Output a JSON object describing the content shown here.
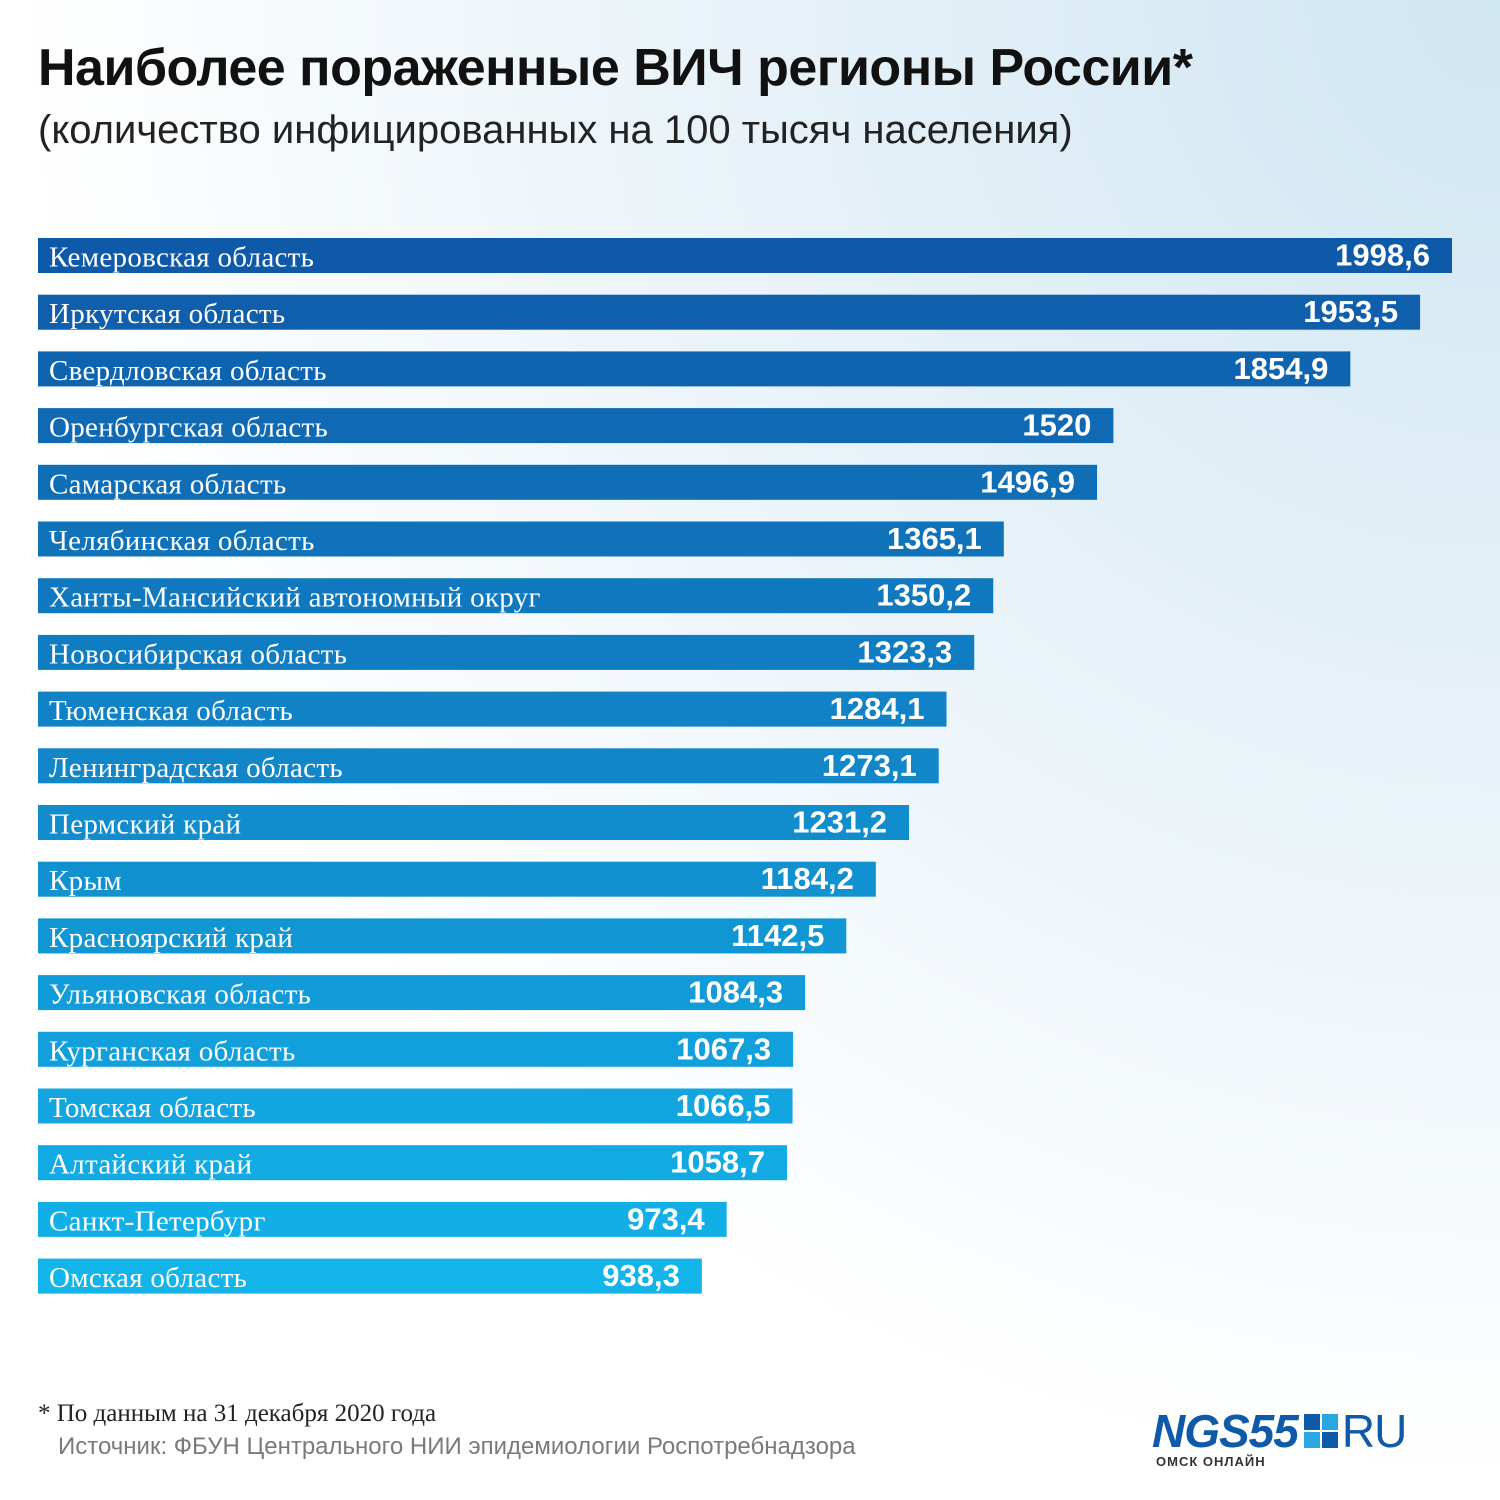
{
  "title": "Наиболее пораженные ВИЧ регионы России*",
  "subtitle": "(количество инфицированных на 100 тысяч населения)",
  "footnote": "* По данным на 31 декабря 2020 года",
  "source": "Источник: ФБУН Центрального НИИ эпидемиологии Роспотребнадзора",
  "logo": {
    "ngs": "NGS55",
    "ru": "RU",
    "tagline": "ОМСК ОНЛАЙН",
    "color_blue": "#0f5aa8",
    "square_colors": [
      "#0f5aa8",
      "#2aa7e0",
      "#2aa7e0",
      "#0f5aa8"
    ]
  },
  "colors": {
    "bar_top": "#0f5aa8",
    "bar_bottom": "#12b4ea",
    "text_on_bar": "#ffffff"
  },
  "chart_data": {
    "type": "bar",
    "orientation": "horizontal",
    "xlim": [
      0,
      1998.6
    ],
    "categories": [
      "Кемеровская область",
      "Иркутская область",
      "Свердловская область",
      "Оренбургская область",
      "Самарская область",
      "Челябинская область",
      "Ханты-Мансийский автономный округ",
      "Новосибирская область",
      "Тюменская область",
      "Ленинградская область",
      "Пермский край",
      "Крым",
      "Красноярский край",
      "Ульяновская область",
      "Курганская область",
      "Томская область",
      "Алтайский край",
      "Санкт-Петербург",
      "Омская область"
    ],
    "values": [
      1998.6,
      1953.5,
      1854.9,
      1520,
      1496.9,
      1365.1,
      1350.2,
      1323.3,
      1284.1,
      1273.1,
      1231.2,
      1184.2,
      1142.5,
      1084.3,
      1067.3,
      1066.5,
      1058.7,
      973.4,
      938.3
    ],
    "value_labels": [
      "1998,6",
      "1953,5",
      "1854,9",
      "1520",
      "1496,9",
      "1365,1",
      "1350,2",
      "1323,3",
      "1284,1",
      "1273,1",
      "1231,2",
      "1184,2",
      "1142,5",
      "1084,3",
      "1067,3",
      "1066,5",
      "1058,7",
      "973,4",
      "938,3"
    ]
  }
}
